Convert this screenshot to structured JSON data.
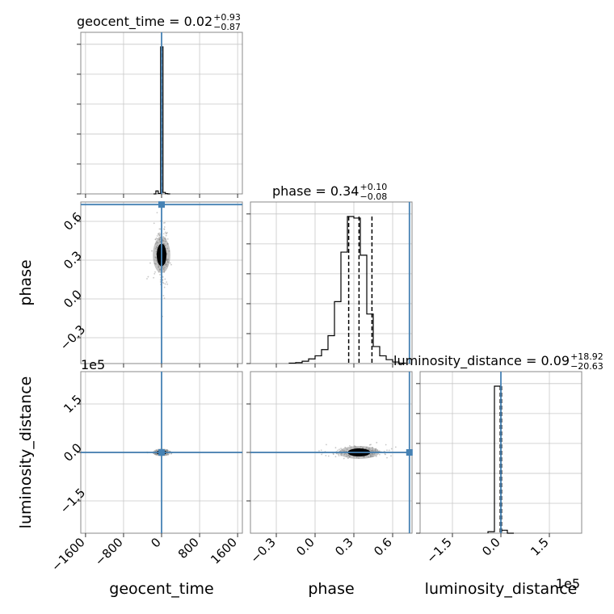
{
  "chart_data": {
    "type": "corner",
    "parameters": [
      "geocent_time",
      "phase",
      "luminosity_distance"
    ],
    "axis_labels": {
      "geocent_time": "geocent_time",
      "phase": "phase",
      "luminosity_distance": "luminosity_distance"
    },
    "ranges": {
      "geocent_time": [
        -1700,
        1700
      ],
      "phase": [
        -0.5,
        0.75
      ],
      "luminosity_distance": [
        -250000,
        250000
      ]
    },
    "ticks": {
      "geocent_time": {
        "values": [
          -1600,
          -800,
          0,
          800,
          1600
        ],
        "labels": [
          "−1600",
          "−800",
          "0",
          "800",
          "1600"
        ]
      },
      "phase": {
        "values": [
          -0.3,
          0.0,
          0.3,
          0.6
        ],
        "labels": [
          "−0.3",
          "0.0",
          "0.3",
          "0.6"
        ]
      },
      "luminosity_distance": {
        "values": [
          -150000,
          0,
          150000
        ],
        "labels": [
          "−1.5",
          "0.0",
          "1.5"
        ]
      }
    },
    "offset_text": "1e5",
    "truths": {
      "geocent_time": 0,
      "phase": 0.73,
      "luminosity_distance": 0
    },
    "truth_color": "#4682b4",
    "titles": [
      {
        "param": "geocent_time",
        "prefix": "geocent_time = ",
        "value": "0.02",
        "plus": "+0.93",
        "minus": "−0.87"
      },
      {
        "param": "phase",
        "prefix": "phase = ",
        "value": "0.34",
        "plus": "+0.10",
        "minus": "−0.08"
      },
      {
        "param": "luminosity_distance",
        "prefix": "luminosity_distance = ",
        "value": "0.09",
        "plus": "+18.92",
        "minus": "−20.63"
      }
    ],
    "quantiles": {
      "geocent_time": [
        -0.85,
        0.02,
        0.95
      ],
      "phase": [
        0.26,
        0.34,
        0.44
      ],
      "luminosity_distance": [
        -20.54,
        0.09,
        19.01
      ]
    },
    "histograms": {
      "geocent_time": {
        "edges": [
          -170,
          -120,
          -70,
          -20,
          30,
          80,
          130,
          180
        ],
        "counts": [
          0,
          2,
          0.3,
          100,
          1,
          0.2,
          0
        ]
      },
      "phase": {
        "edges": [
          -0.2,
          -0.15,
          -0.1,
          -0.05,
          0.0,
          0.05,
          0.1,
          0.15,
          0.2,
          0.25,
          0.3,
          0.35,
          0.4,
          0.45,
          0.5,
          0.55,
          0.6,
          0.65,
          0.7
        ],
        "counts": [
          0.3,
          0.6,
          1.5,
          3,
          5,
          9,
          18,
          40,
          72,
          95,
          94,
          70,
          32,
          11,
          5,
          2.5,
          1,
          0.3
        ]
      },
      "luminosity_distance": {
        "edges": [
          -40000,
          -20000,
          0,
          20000,
          40000
        ],
        "counts": [
          1,
          99,
          2,
          0
        ]
      }
    },
    "blob_2d": {
      "geocent_time-phase": {
        "center": [
          0,
          0.34
        ],
        "spread": [
          40,
          0.06
        ]
      },
      "geocent_time-luminosity_distance": {
        "center": [
          0,
          0
        ],
        "spread": [
          40,
          2000
        ]
      },
      "phase-luminosity_distance": {
        "center": [
          0.34,
          0
        ],
        "spread": [
          0.06,
          5000
        ]
      }
    }
  }
}
